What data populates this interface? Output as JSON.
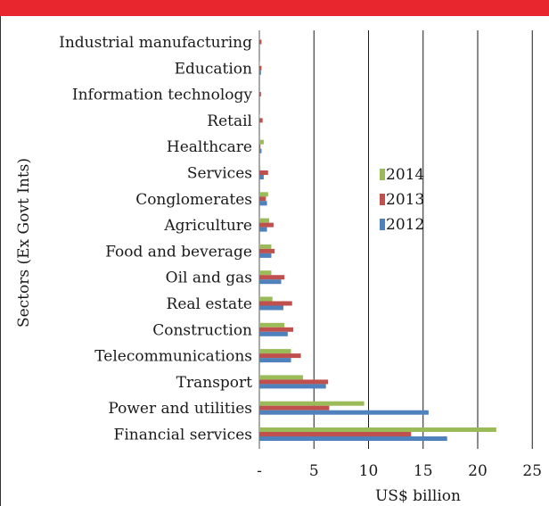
{
  "chart_data": {
    "type": "bar",
    "orientation": "horizontal",
    "title": "",
    "xlabel": "US$ billion",
    "ylabel": "Sectors (Ex Govt Ints)",
    "xlim": [
      0,
      25
    ],
    "x_ticks": [
      {
        "value": 0,
        "label": "-"
      },
      {
        "value": 5,
        "label": "5"
      },
      {
        "value": 10,
        "label": "10"
      },
      {
        "value": 15,
        "label": "15"
      },
      {
        "value": 20,
        "label": "20"
      },
      {
        "value": 25,
        "label": "25"
      }
    ],
    "grid": "vertical",
    "legend": "center-right",
    "categories": [
      "Industrial manufacturing",
      "Education",
      "Information technology",
      "Retail",
      "Healthcare",
      "Services",
      "Conglomerates",
      "Agriculture",
      "Food and beverage",
      "Oil and gas",
      "Real estate",
      "Construction",
      "Telecommunications",
      "Transport",
      "Power and utilities",
      "Financial services"
    ],
    "series": [
      {
        "name": "2014",
        "color": "#9bbb59",
        "values": [
          0.0,
          0.05,
          0.0,
          0.05,
          0.4,
          0.1,
          0.8,
          0.9,
          1.1,
          1.1,
          1.2,
          2.3,
          2.9,
          4.0,
          9.6,
          21.7
        ]
      },
      {
        "name": "2013",
        "color": "#c0504d",
        "values": [
          0.2,
          0.2,
          0.15,
          0.3,
          0.1,
          0.8,
          0.6,
          1.3,
          1.4,
          2.3,
          3.0,
          3.1,
          3.8,
          6.3,
          6.4,
          13.9
        ]
      },
      {
        "name": "2012",
        "color": "#4f81bd",
        "values": [
          0.0,
          0.15,
          0.0,
          0.05,
          0.2,
          0.4,
          0.7,
          0.7,
          1.1,
          2.0,
          2.2,
          2.6,
          2.9,
          6.1,
          15.5,
          17.2
        ]
      }
    ]
  }
}
